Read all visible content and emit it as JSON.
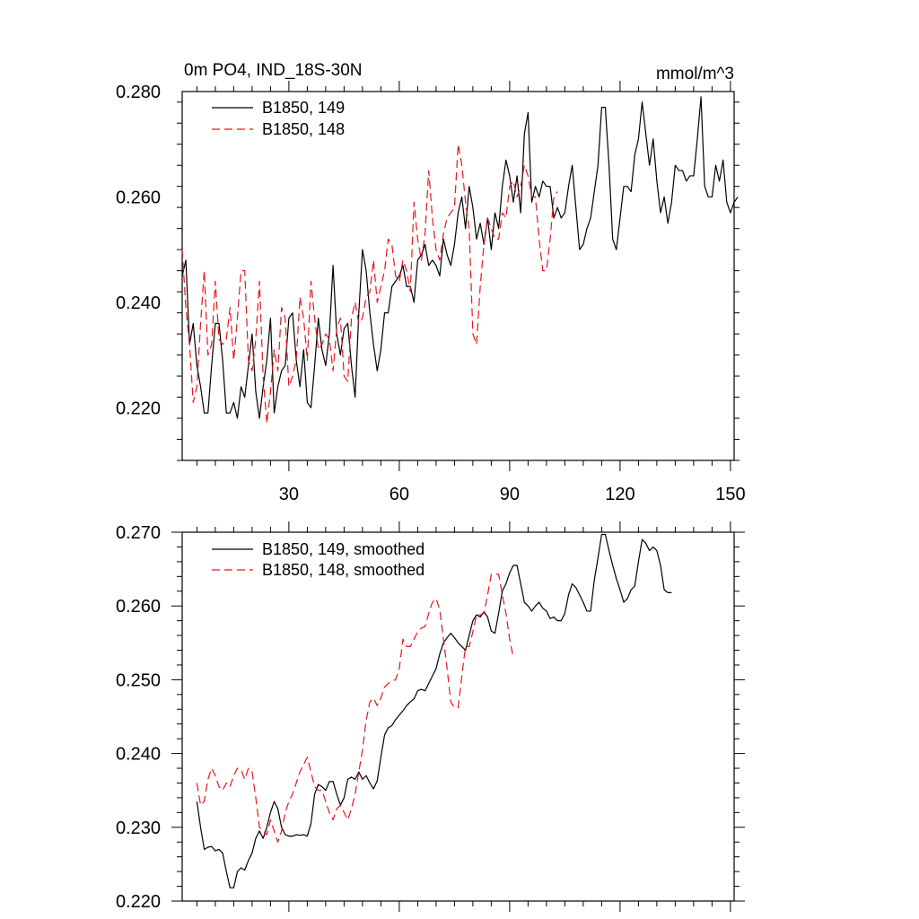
{
  "colors": {
    "black": "#000000",
    "red": "#e8141c"
  },
  "chart_data": [
    {
      "type": "line",
      "title": "0m PO4, IND_18S-30N",
      "units": "mmol/m^3",
      "xlim": [
        1,
        151
      ],
      "ylim": [
        0.21,
        0.28
      ],
      "xticks": [
        30,
        60,
        90,
        120,
        150
      ],
      "xtick_labels": [
        "30",
        "60",
        "90",
        "120",
        "150"
      ],
      "yticks": [
        0.22,
        0.24,
        0.26,
        0.28
      ],
      "ytick_labels": [
        "0.220",
        "0.240",
        "0.260",
        "0.280"
      ],
      "legend_position": "top-left",
      "series": [
        {
          "name": "B1850, 149",
          "style": "solid",
          "color": "#000000",
          "x_start": 1,
          "values": [
            0.245,
            0.248,
            0.232,
            0.236,
            0.228,
            0.224,
            0.219,
            0.219,
            0.228,
            0.236,
            0.236,
            0.229,
            0.219,
            0.219,
            0.221,
            0.218,
            0.224,
            0.222,
            0.228,
            0.234,
            0.223,
            0.218,
            0.224,
            0.229,
            0.237,
            0.219,
            0.224,
            0.227,
            0.228,
            0.237,
            0.238,
            0.229,
            0.224,
            0.231,
            0.221,
            0.22,
            0.228,
            0.237,
            0.231,
            0.228,
            0.234,
            0.247,
            0.234,
            0.23,
            0.235,
            0.236,
            0.228,
            0.222,
            0.238,
            0.25,
            0.246,
            0.238,
            0.232,
            0.227,
            0.231,
            0.238,
            0.238,
            0.243,
            0.244,
            0.245,
            0.247,
            0.243,
            0.243,
            0.24,
            0.248,
            0.249,
            0.251,
            0.247,
            0.248,
            0.247,
            0.245,
            0.252,
            0.249,
            0.247,
            0.251,
            0.257,
            0.26,
            0.254,
            0.262,
            0.258,
            0.252,
            0.255,
            0.251,
            0.256,
            0.25,
            0.257,
            0.254,
            0.262,
            0.267,
            0.264,
            0.259,
            0.264,
            0.257,
            0.272,
            0.276,
            0.259,
            0.262,
            0.26,
            0.263,
            0.262,
            0.262,
            0.256,
            0.258,
            0.256,
            0.257,
            0.262,
            0.266,
            0.258,
            0.25,
            0.251,
            0.254,
            0.256,
            0.261,
            0.266,
            0.277,
            0.277,
            0.266,
            0.252,
            0.25,
            0.256,
            0.262,
            0.262,
            0.261,
            0.268,
            0.271,
            0.278,
            0.272,
            0.266,
            0.271,
            0.263,
            0.257,
            0.26,
            0.255,
            0.259,
            0.266,
            0.265,
            0.265,
            0.263,
            0.264,
            0.264,
            0.271,
            0.279,
            0.262,
            0.26,
            0.26,
            0.266,
            0.263,
            0.267,
            0.259,
            0.257,
            0.259,
            0.26
          ]
        },
        {
          "name": "B1850, 148",
          "style": "dashed",
          "color": "#e8141c",
          "x_start": 1,
          "values": [
            0.25,
            0.239,
            0.232,
            0.221,
            0.224,
            0.236,
            0.246,
            0.23,
            0.232,
            0.244,
            0.233,
            0.232,
            0.233,
            0.239,
            0.229,
            0.237,
            0.246,
            0.246,
            0.229,
            0.227,
            0.233,
            0.244,
            0.226,
            0.217,
            0.223,
            0.231,
            0.227,
            0.239,
            0.237,
            0.224,
            0.226,
            0.229,
            0.241,
            0.237,
            0.229,
            0.244,
            0.237,
            0.231,
            0.232,
            0.234,
            0.233,
            0.227,
            0.235,
            0.237,
            0.226,
            0.225,
            0.237,
            0.24,
            0.236,
            0.237,
            0.241,
            0.242,
            0.248,
            0.24,
            0.243,
            0.246,
            0.252,
            0.251,
            0.245,
            0.244,
            0.248,
            0.246,
            0.242,
            0.259,
            0.252,
            0.248,
            0.253,
            0.265,
            0.256,
            0.25,
            0.248,
            0.253,
            0.256,
            0.257,
            0.258,
            0.27,
            0.266,
            0.259,
            0.254,
            0.234,
            0.232,
            0.243,
            0.251,
            0.256,
            0.254,
            0.252,
            0.252,
            0.257,
            0.256,
            0.262,
            0.263,
            0.26,
            0.262,
            0.266,
            0.264,
            0.26,
            0.26,
            0.252,
            0.246,
            0.246,
            0.252,
            0.26,
            0.261
          ]
        }
      ]
    },
    {
      "type": "line",
      "title": "",
      "units": "",
      "xlim": [
        1,
        151
      ],
      "ylim": [
        0.22,
        0.27
      ],
      "xticks": [
        30,
        60,
        90,
        120,
        150
      ],
      "xtick_labels": [],
      "yticks": [
        0.22,
        0.23,
        0.24,
        0.25,
        0.26,
        0.27
      ],
      "ytick_labels": [
        "0.220",
        "0.230",
        "0.240",
        "0.250",
        "0.260",
        "0.270"
      ],
      "legend_position": "top-left",
      "series": [
        {
          "name": "B1850, 149, smoothed",
          "style": "solid",
          "color": "#000000",
          "x_start": 5,
          "values": [
            0.2335,
            0.23,
            0.227,
            0.2273,
            0.2274,
            0.2268,
            0.227,
            0.2265,
            0.224,
            0.2218,
            0.2218,
            0.224,
            0.2245,
            0.2242,
            0.2255,
            0.2265,
            0.2285,
            0.2295,
            0.2285,
            0.23,
            0.232,
            0.2335,
            0.2325,
            0.23,
            0.229,
            0.2288,
            0.2288,
            0.229,
            0.2289,
            0.229,
            0.2288,
            0.2305,
            0.2345,
            0.2358,
            0.2355,
            0.235,
            0.2362,
            0.2362,
            0.2345,
            0.233,
            0.234,
            0.2365,
            0.2368,
            0.2365,
            0.2375,
            0.2365,
            0.237,
            0.236,
            0.2352,
            0.2363,
            0.2395,
            0.2425,
            0.2435,
            0.2438,
            0.2446,
            0.2452,
            0.2458,
            0.2465,
            0.247,
            0.2474,
            0.2485,
            0.2487,
            0.2485,
            0.2495,
            0.2505,
            0.2515,
            0.2535,
            0.255,
            0.2557,
            0.2563,
            0.2557,
            0.255,
            0.2545,
            0.254,
            0.256,
            0.258,
            0.2588,
            0.2585,
            0.2592,
            0.2585,
            0.2566,
            0.2563,
            0.259,
            0.262,
            0.263,
            0.2645,
            0.2655,
            0.2655,
            0.263,
            0.2605,
            0.26,
            0.2593,
            0.26,
            0.2605,
            0.2597,
            0.2593,
            0.2583,
            0.2585,
            0.258,
            0.258,
            0.259,
            0.2615,
            0.263,
            0.2625,
            0.2615,
            0.2605,
            0.2593,
            0.2593,
            0.2635,
            0.2665,
            0.2697,
            0.2697,
            0.2675,
            0.2655,
            0.2637,
            0.2622,
            0.2605,
            0.261,
            0.2622,
            0.2627,
            0.266,
            0.269,
            0.2685,
            0.2675,
            0.268,
            0.2675,
            0.2655,
            0.2622,
            0.2618,
            0.2618
          ]
        },
        {
          "name": "B1850, 148, smoothed",
          "style": "dashed",
          "color": "#e8141c",
          "x_start": 5,
          "values": [
            0.236,
            0.233,
            0.2335,
            0.2365,
            0.238,
            0.237,
            0.2355,
            0.235,
            0.236,
            0.2355,
            0.237,
            0.238,
            0.2378,
            0.2365,
            0.238,
            0.2375,
            0.234,
            0.23,
            0.2295,
            0.229,
            0.231,
            0.2295,
            0.228,
            0.2295,
            0.232,
            0.2335,
            0.2345,
            0.236,
            0.2375,
            0.2385,
            0.2395,
            0.2375,
            0.2355,
            0.235,
            0.235,
            0.2335,
            0.232,
            0.231,
            0.2325,
            0.233,
            0.232,
            0.231,
            0.2325,
            0.2345,
            0.2375,
            0.2405,
            0.2445,
            0.247,
            0.2475,
            0.2465,
            0.2475,
            0.249,
            0.2495,
            0.2498,
            0.25,
            0.2515,
            0.2555,
            0.2545,
            0.2545,
            0.2555,
            0.2565,
            0.257,
            0.2572,
            0.259,
            0.2605,
            0.261,
            0.2595,
            0.2555,
            0.2515,
            0.247,
            0.2462,
            0.2462,
            0.2505,
            0.2545,
            0.2545,
            0.2565,
            0.2588,
            0.2588,
            0.259,
            0.2615,
            0.2643,
            0.2643,
            0.2643,
            0.2615,
            0.259,
            0.2555,
            0.253
          ]
        }
      ]
    }
  ]
}
